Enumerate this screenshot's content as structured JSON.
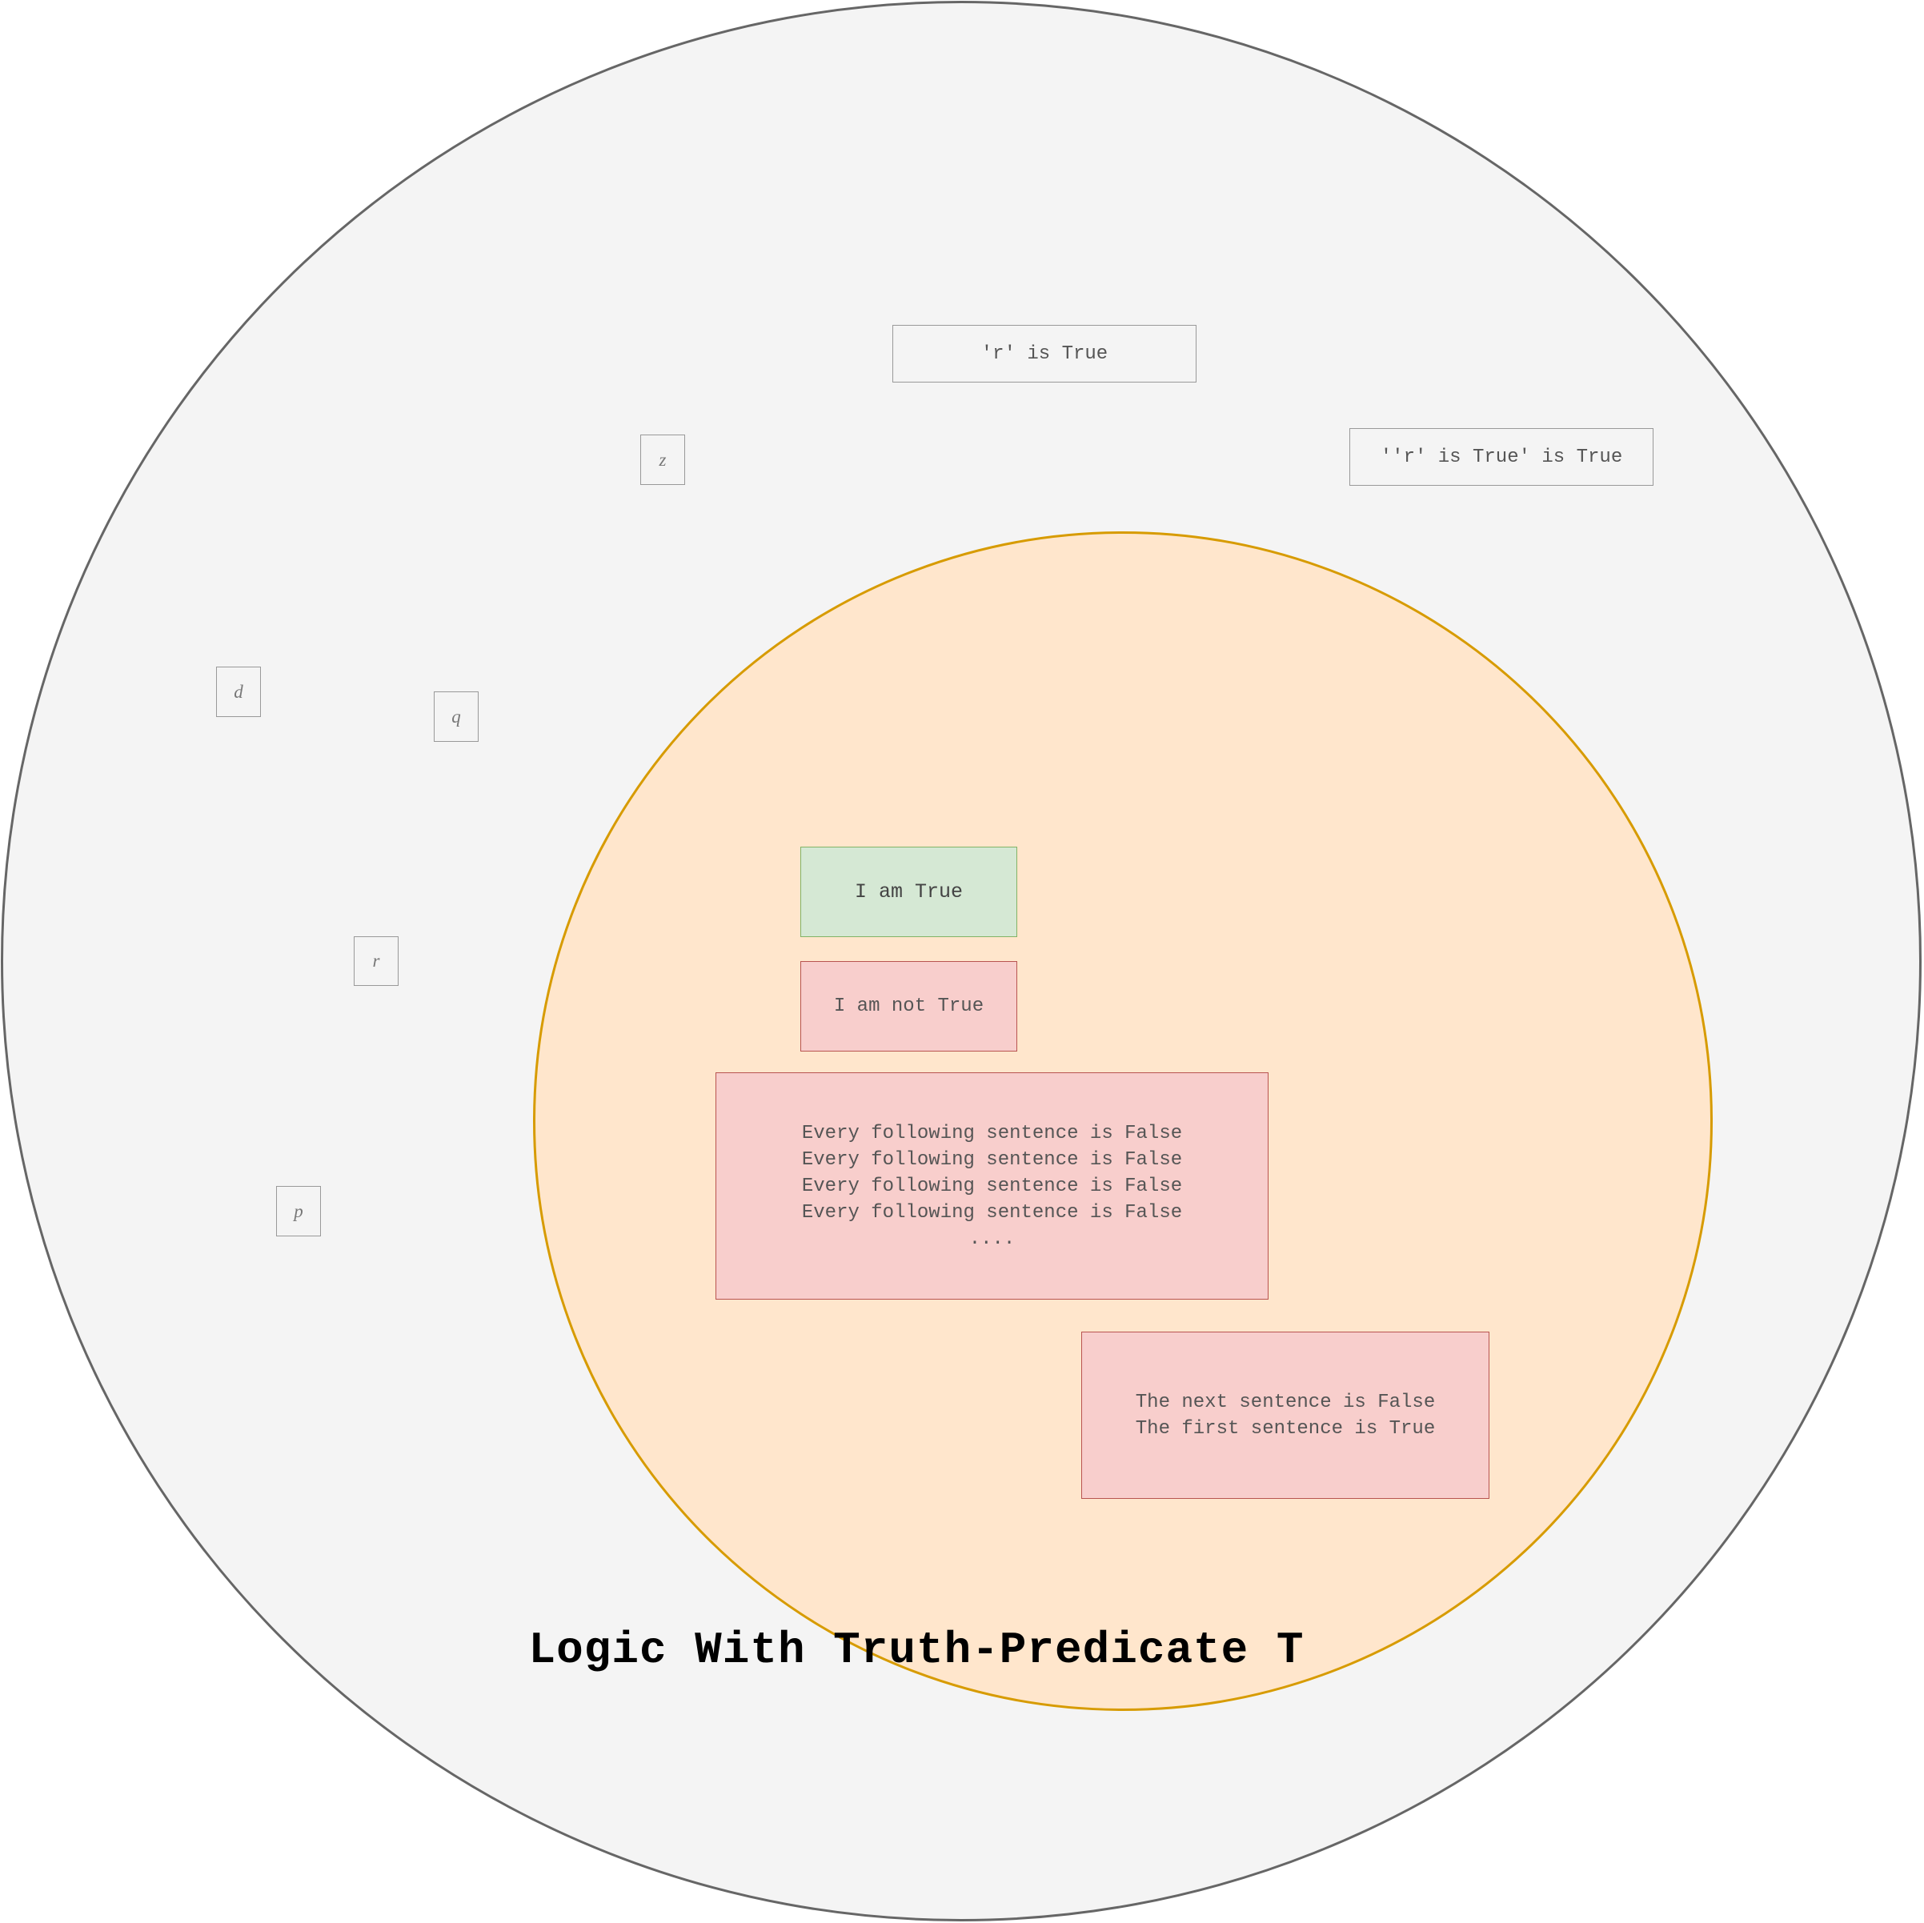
{
  "title": "Logic With Truth-Predicate T",
  "colors": {
    "outer_fill": "#f4f4f4",
    "outer_stroke": "#666666",
    "inner_fill": "#ffe6cc",
    "inner_stroke": "#d79b00",
    "true_fill": "#d5e8d4",
    "true_stroke": "#82b366",
    "false_fill": "#f8cecc",
    "false_stroke": "#b85450"
  },
  "variables": {
    "z": "z",
    "d": "d",
    "q": "q",
    "r": "r",
    "p": "p"
  },
  "sentences": {
    "r_true": "'r' is True",
    "r_true_true": "''r' is True' is True",
    "i_am_true": "I am True",
    "i_am_not_true": "I am not True",
    "every_following": [
      "Every following sentence is False",
      "Every following sentence is False",
      "Every following sentence is False",
      "Every following sentence is False",
      "...."
    ],
    "next_first": [
      "The next sentence is False",
      "The first sentence is True"
    ]
  }
}
